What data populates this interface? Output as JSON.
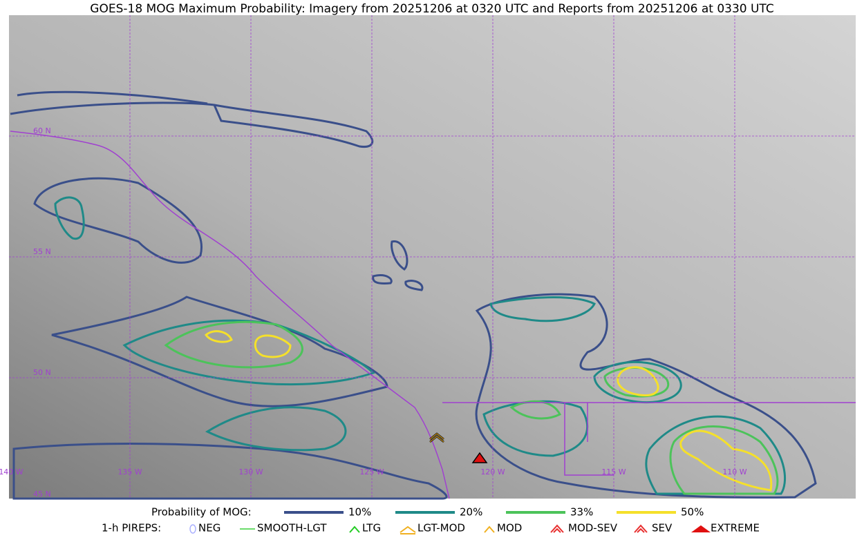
{
  "header": {
    "title": "GOES-18 MOG Maximum Probability: Imagery from 20251206 at 0320 UTC and Reports from 20251206 at 0330 UTC"
  },
  "map": {
    "lat_labels": [
      "60 N",
      "55 N",
      "50 N",
      "45 N"
    ],
    "lon_labels": [
      "140 W",
      "135 W",
      "130 W",
      "125 W",
      "120 W",
      "115 W",
      "110 W"
    ]
  },
  "legend": {
    "probability": {
      "label": "Probability of MOG:",
      "items": [
        {
          "label": "10%",
          "color": "#3a4f8a"
        },
        {
          "label": "20%",
          "color": "#1f8a88"
        },
        {
          "label": "33%",
          "color": "#4cc35a"
        },
        {
          "label": "50%",
          "color": "#f5e02a"
        }
      ]
    },
    "pireps": {
      "label": "1-h PIREPS:",
      "items": [
        {
          "label": "NEG",
          "color": "#aab0ff"
        },
        {
          "label": "SMOOTH-LGT",
          "color": "#3ad03a"
        },
        {
          "label": "LTG",
          "color": "#22cc22"
        },
        {
          "label": "LGT-MOD",
          "color": "#f0b020"
        },
        {
          "label": "MOD",
          "color": "#f0b020"
        },
        {
          "label": "MOD-SEV",
          "color": "#e83030"
        },
        {
          "label": "SEV",
          "color": "#e83030"
        },
        {
          "label": "EXTREME",
          "color": "#e01010"
        }
      ]
    }
  }
}
